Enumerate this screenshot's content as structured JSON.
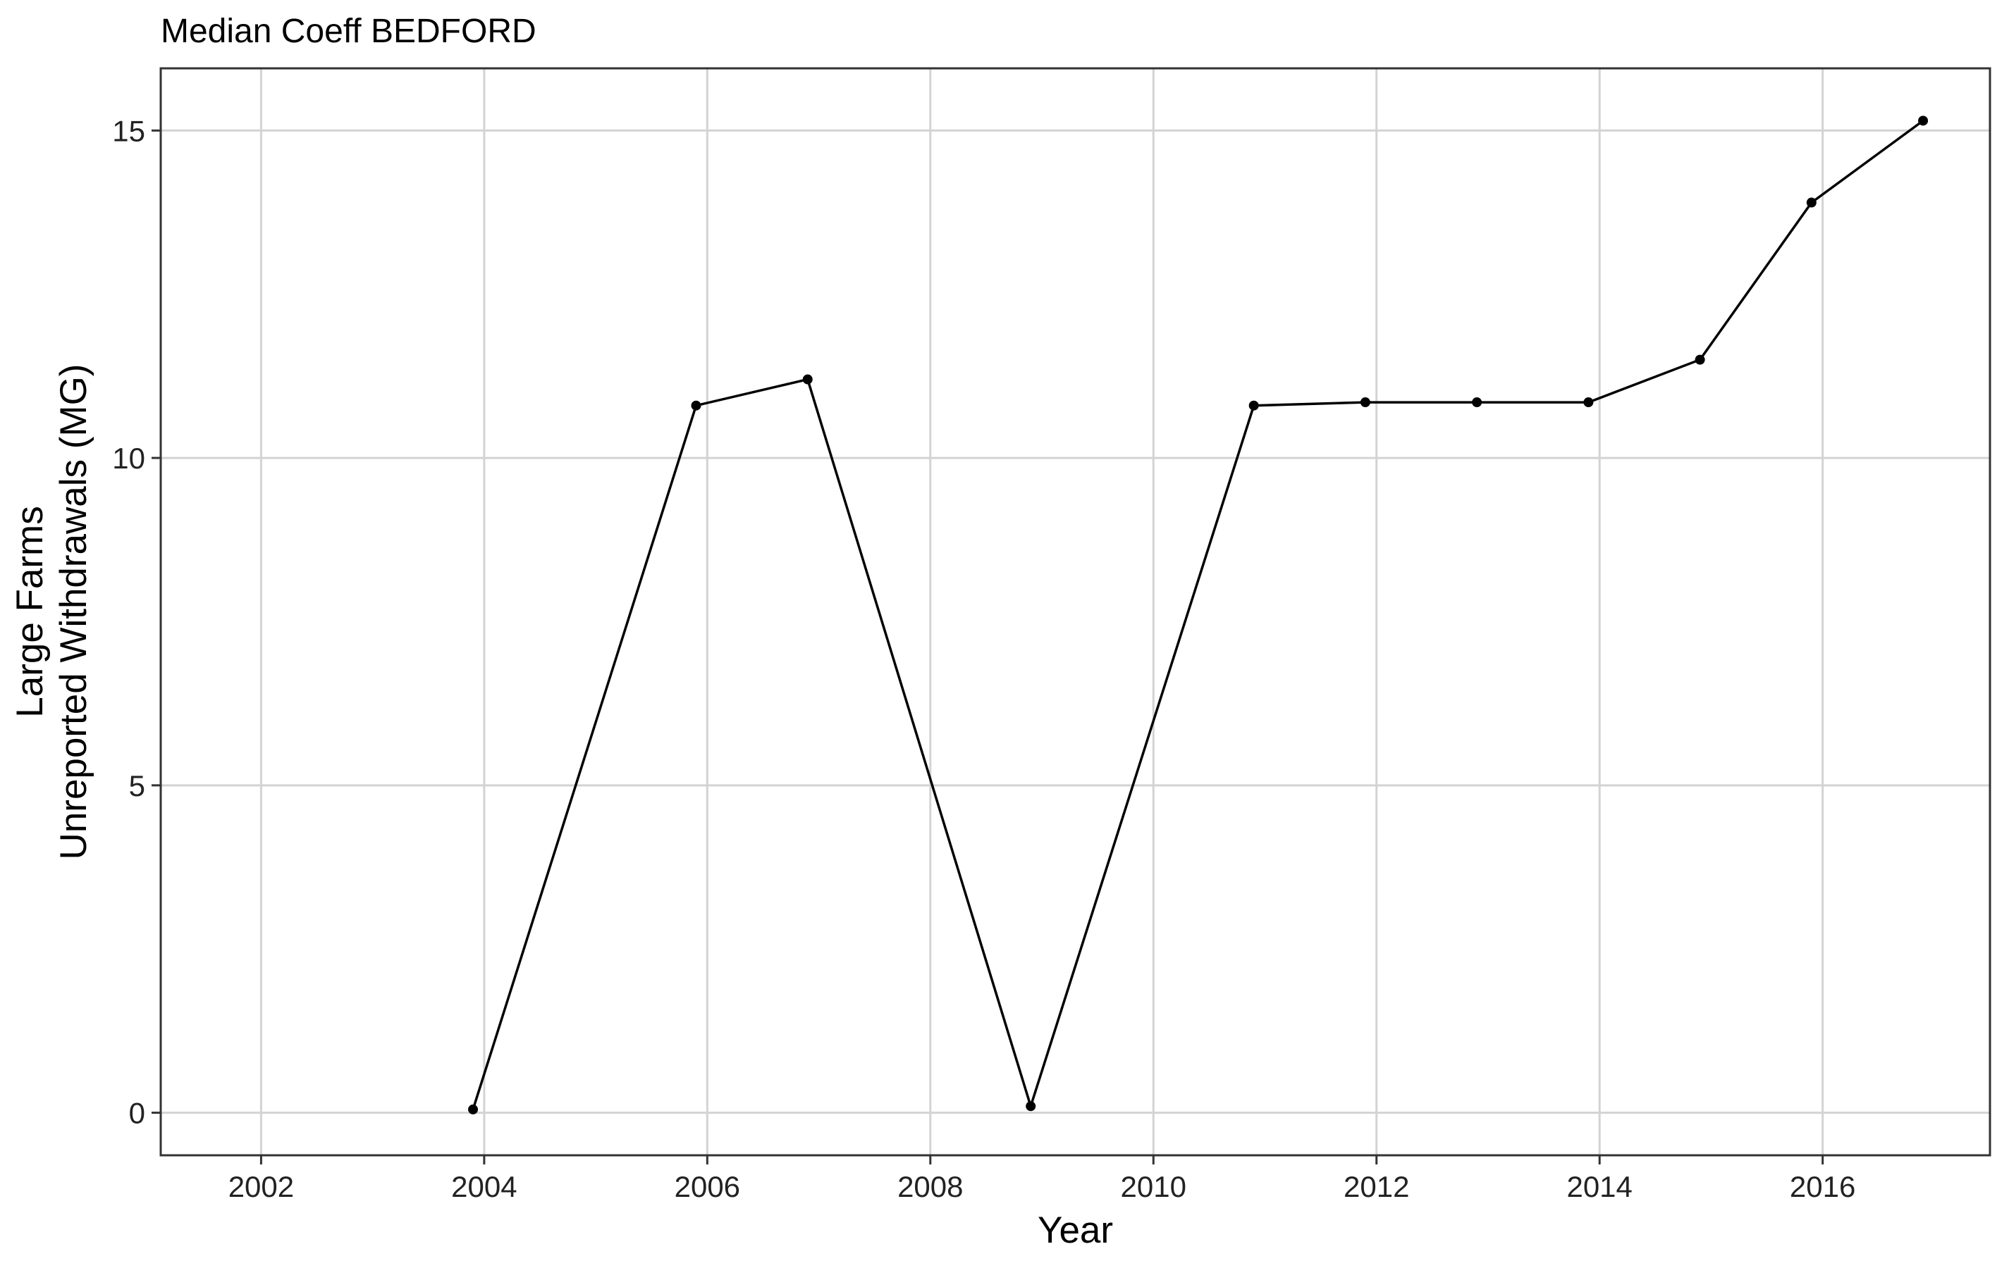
{
  "chart_data": {
    "type": "line",
    "title": "Median Coeff BEDFORD",
    "xlabel": "Year",
    "ylabel": [
      "Large Farms",
      "Unreported Withdrawals (MG)"
    ],
    "x_ticks": [
      2002,
      2004,
      2006,
      2008,
      2010,
      2012,
      2014,
      2016
    ],
    "y_ticks": [
      0,
      5,
      10,
      15
    ],
    "xlim": [
      2001.1,
      2017.5
    ],
    "ylim": [
      -0.65,
      15.95
    ],
    "grid": true,
    "legend": "none",
    "series": [
      {
        "x": [
          2003.9,
          2005.9,
          2006.9,
          2008.9,
          2010.9,
          2011.9,
          2012.9,
          2013.9,
          2014.9,
          2015.9,
          2016.9
        ],
        "y": [
          0.05,
          10.8,
          11.2,
          0.1,
          10.8,
          10.85,
          10.85,
          10.85,
          11.5,
          13.9,
          15.15
        ]
      }
    ],
    "colors": {
      "line": "#000000",
      "grid": "#d3d3d3",
      "border": "#333333"
    }
  }
}
